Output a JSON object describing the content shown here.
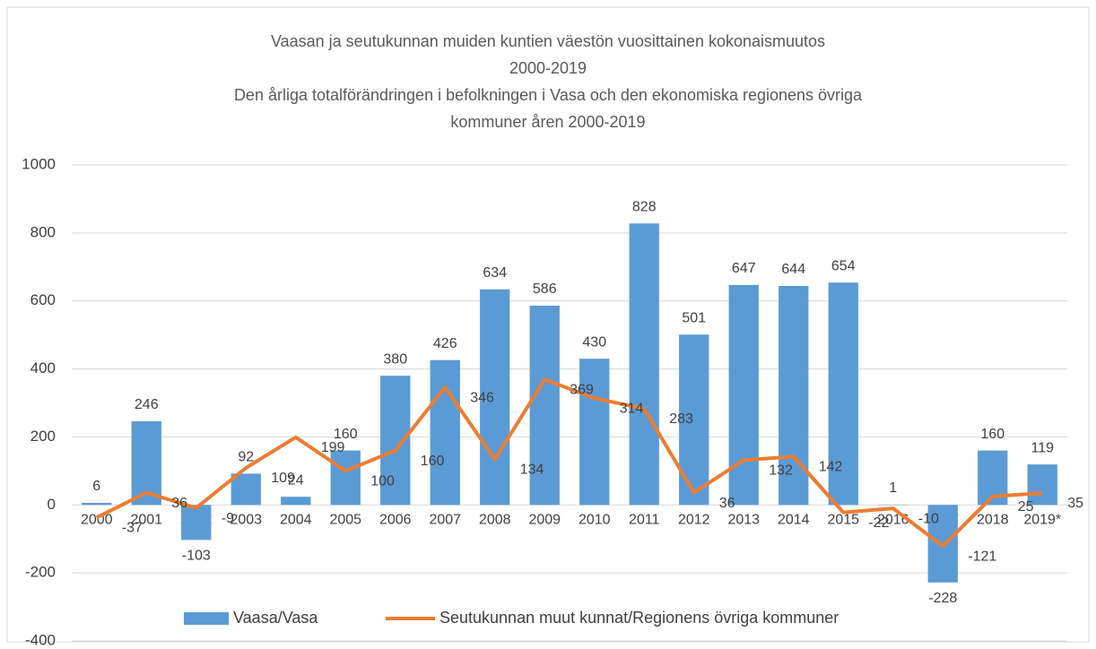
{
  "chart_data": {
    "type": "bar",
    "title": [
      "Vaasan ja seutukunnan muiden kuntien väestön vuosittainen kokonaismuutos",
      "2000-2019",
      "Den årliga totalförändringen i befolkningen i Vasa och den ekonomiska regionens övriga",
      "kommuner åren 2000-2019"
    ],
    "categories": [
      "2000",
      "2001",
      "2002",
      "2003",
      "2004",
      "2005",
      "2006",
      "2007",
      "2008",
      "2009",
      "2010",
      "2011",
      "2012",
      "2013",
      "2014",
      "2015",
      "2016",
      "2017",
      "2018",
      "2019*"
    ],
    "series": [
      {
        "name": "Vaasa/Vasa",
        "type": "bar",
        "color": "#5b9bd5",
        "values": [
          6,
          246,
          -103,
          92,
          24,
          160,
          380,
          426,
          634,
          586,
          430,
          828,
          501,
          647,
          644,
          654,
          1,
          -228,
          160,
          119
        ]
      },
      {
        "name": "Seutukunnan muut kunnat/Regionens övriga kommuner",
        "type": "line",
        "color": "#ed7d31",
        "values": [
          -37,
          36,
          -9,
          109,
          199,
          100,
          160,
          346,
          134,
          369,
          314,
          283,
          36,
          132,
          142,
          -22,
          -10,
          -121,
          25,
          35
        ]
      }
    ],
    "ylim": [
      -400,
      1000
    ],
    "yticks": [
      -400,
      -200,
      0,
      200,
      400,
      600,
      800,
      1000
    ],
    "grid": true,
    "legend": "bottom"
  }
}
